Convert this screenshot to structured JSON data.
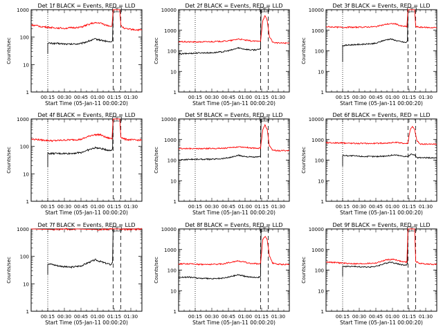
{
  "colors": {
    "events": "#000000",
    "lld": "#ff0000",
    "axis": "#000000",
    "background": "#ffffff"
  },
  "chart_data": [
    {
      "type": "line",
      "title": "Det 1f BLACK = Events, RED = LLD",
      "xlabel": "Start Time (05-Jan-11 00:00:20)",
      "ylabel": "Counts/sec",
      "yscale": "log",
      "ylim": [
        1,
        1000
      ],
      "yticks": [
        "1",
        "10",
        "100",
        "1000"
      ],
      "yticks_values": [
        1,
        10,
        100,
        1000
      ],
      "xlim": [
        0,
        100
      ],
      "xticks": [
        "00:15",
        "00:30",
        "00:45",
        "01:00",
        "01:15",
        "01:30"
      ],
      "xticks_values": [
        15,
        30,
        45,
        60,
        75,
        90
      ],
      "vlines_dotted": [
        15
      ],
      "vlines_dashed": [
        74,
        81
      ],
      "marker_text": "T",
      "grid": false,
      "series": [
        {
          "x": [
            15,
            15,
            25,
            35,
            45,
            52,
            58,
            65,
            72,
            73.5,
            74,
            76,
            80
          ],
          "y": [
            25,
            60,
            58,
            55,
            58,
            72,
            85,
            75,
            65,
            75,
            1000,
            1000,
            1000
          ]
        },
        {
          "x": [
            0,
            10,
            20,
            30,
            45,
            55,
            62,
            68,
            73,
            74,
            76,
            80,
            81,
            85,
            95,
            100
          ],
          "y": [
            280,
            240,
            220,
            210,
            230,
            320,
            330,
            270,
            250,
            1000,
            1000,
            1000,
            260,
            200,
            185,
            180
          ]
        }
      ]
    },
    {
      "type": "line",
      "title": "Det 2f BLACK = Events, RED = LLD",
      "xlabel": "Start Time (05-Jan-11 00:00:20)",
      "ylabel": "Counts/sec",
      "yscale": "log",
      "ylim": [
        1,
        10000
      ],
      "yticks": [
        "1",
        "10",
        "100",
        "1000",
        "10000"
      ],
      "yticks_values": [
        1,
        10,
        100,
        1000,
        10000
      ],
      "xlim": [
        0,
        100
      ],
      "xticks": [
        "00:15",
        "00:30",
        "00:45",
        "01:00",
        "01:15",
        "01:30"
      ],
      "xticks_values": [
        15,
        30,
        45,
        60,
        75,
        90
      ],
      "vlines_dotted": [
        15
      ],
      "vlines_dashed": [
        74,
        81
      ],
      "marker_text": "T",
      "grid": false,
      "series": [
        {
          "x": [
            0,
            0,
            10,
            20,
            30,
            40,
            48,
            54,
            60,
            66,
            72,
            74,
            74.5
          ],
          "y": [
            30,
            70,
            75,
            80,
            80,
            90,
            110,
            140,
            120,
            110,
            115,
            120,
            10000
          ]
        },
        {
          "x": [
            0,
            10,
            20,
            30,
            40,
            48,
            54,
            60,
            66,
            72,
            74,
            76,
            78,
            80,
            82,
            85,
            90,
            100
          ],
          "y": [
            280,
            270,
            270,
            280,
            290,
            320,
            380,
            330,
            300,
            290,
            300,
            3000,
            5000,
            3000,
            500,
            260,
            240,
            240
          ]
        }
      ]
    },
    {
      "type": "line",
      "title": "Det 3f BLACK = Events, RED = LLD",
      "xlabel": "Start Time (05-Jan-11 00:00:20)",
      "ylabel": "Counts/sec",
      "yscale": "log",
      "ylim": [
        1,
        10000
      ],
      "yticks": [
        "1",
        "10",
        "100",
        "1000",
        "10000"
      ],
      "yticks_values": [
        1,
        10,
        100,
        1000,
        10000
      ],
      "xlim": [
        0,
        100
      ],
      "xticks": [
        "00:15",
        "00:30",
        "00:45",
        "01:00",
        "01:15",
        "01:30"
      ],
      "xticks_values": [
        15,
        30,
        45,
        60,
        75,
        90
      ],
      "vlines_dotted": [
        15
      ],
      "vlines_dashed": [
        74,
        81
      ],
      "marker_text": "T",
      "grid": false,
      "series": [
        {
          "x": [
            15,
            15,
            25,
            35,
            45,
            52,
            58,
            65,
            72,
            73.5,
            74,
            76,
            80
          ],
          "y": [
            30,
            180,
            200,
            210,
            230,
            320,
            380,
            300,
            250,
            300,
            10000,
            10000,
            10000
          ]
        },
        {
          "x": [
            0,
            10,
            20,
            30,
            45,
            55,
            62,
            68,
            73,
            74,
            76,
            80,
            81,
            85,
            95,
            100
          ],
          "y": [
            1500,
            1400,
            1400,
            1400,
            1500,
            2000,
            2100,
            1600,
            1500,
            10000,
            10000,
            10000,
            1500,
            1400,
            1350,
            1350
          ]
        }
      ]
    },
    {
      "type": "line",
      "title": "Det 4f BLACK = Events, RED = LLD",
      "xlabel": "Start Time (05-Jan-11 00:00:20)",
      "ylabel": "Counts/sec",
      "yscale": "log",
      "ylim": [
        1,
        1000
      ],
      "yticks": [
        "1",
        "10",
        "100",
        "1000"
      ],
      "yticks_values": [
        1,
        10,
        100,
        1000
      ],
      "xlim": [
        0,
        100
      ],
      "xticks": [
        "00:15",
        "00:30",
        "00:45",
        "01:00",
        "01:15",
        "01:30"
      ],
      "xticks_values": [
        15,
        30,
        45,
        60,
        75,
        90
      ],
      "vlines_dotted": [
        15
      ],
      "vlines_dashed": [
        74,
        81
      ],
      "marker_text": "T",
      "grid": false,
      "series": [
        {
          "x": [
            15,
            15,
            25,
            35,
            45,
            52,
            58,
            65,
            72,
            73.5,
            74,
            76,
            80
          ],
          "y": [
            18,
            55,
            55,
            55,
            60,
            75,
            90,
            80,
            70,
            80,
            1000,
            1000,
            1000
          ]
        },
        {
          "x": [
            0,
            10,
            20,
            30,
            45,
            55,
            62,
            68,
            73,
            74,
            76,
            80,
            81,
            85,
            95,
            100
          ],
          "y": [
            190,
            170,
            160,
            170,
            180,
            260,
            270,
            210,
            190,
            1000,
            1000,
            1000,
            220,
            180,
            170,
            170
          ]
        }
      ]
    },
    {
      "type": "line",
      "title": "Det 5f BLACK = Events, RED = LLD",
      "xlabel": "Start Time (05-Jan-11 00:00:20)",
      "ylabel": "Counts/sec",
      "yscale": "log",
      "ylim": [
        1,
        10000
      ],
      "yticks": [
        "1",
        "10",
        "100",
        "1000",
        "10000"
      ],
      "yticks_values": [
        1,
        10,
        100,
        1000,
        10000
      ],
      "xlim": [
        0,
        100
      ],
      "xticks": [
        "00:15",
        "00:30",
        "00:45",
        "01:00",
        "01:15",
        "01:30"
      ],
      "xticks_values": [
        15,
        30,
        45,
        60,
        75,
        90
      ],
      "vlines_dotted": [
        15
      ],
      "vlines_dashed": [
        74,
        81
      ],
      "marker_text": "T",
      "grid": false,
      "series": [
        {
          "x": [
            0,
            0,
            10,
            20,
            30,
            40,
            48,
            54,
            60,
            66,
            72,
            74,
            74.5
          ],
          "y": [
            40,
            100,
            110,
            110,
            110,
            120,
            140,
            170,
            150,
            140,
            140,
            150,
            10000
          ]
        },
        {
          "x": [
            0,
            10,
            20,
            30,
            40,
            48,
            54,
            60,
            66,
            72,
            74,
            76,
            78,
            80,
            82,
            85,
            90,
            100
          ],
          "y": [
            370,
            360,
            360,
            370,
            380,
            400,
            450,
            420,
            390,
            380,
            390,
            3000,
            5000,
            3000,
            500,
            300,
            290,
            290
          ]
        }
      ]
    },
    {
      "type": "line",
      "title": "Det 6f BLACK = Events, RED = LLD",
      "xlabel": "Start Time (05-Jan-11 00:00:20)",
      "ylabel": "Counts/sec",
      "yscale": "log",
      "ylim": [
        1,
        10000
      ],
      "yticks": [
        "1",
        "10",
        "100",
        "1000",
        "10000"
      ],
      "yticks_values": [
        1,
        10,
        100,
        1000,
        10000
      ],
      "xlim": [
        0,
        100
      ],
      "xticks": [
        "00:15",
        "00:30",
        "00:45",
        "01:00",
        "01:15",
        "01:30"
      ],
      "xticks_values": [
        15,
        30,
        45,
        60,
        75,
        90
      ],
      "vlines_dotted": [
        15
      ],
      "vlines_dashed": [
        74,
        81
      ],
      "marker_text": "",
      "grid": false,
      "series": [
        {
          "x": [
            15,
            15,
            25,
            35,
            45,
            55,
            62,
            68,
            73,
            74,
            76,
            78,
            80,
            82,
            85,
            100
          ],
          "y": [
            50,
            170,
            160,
            150,
            150,
            160,
            180,
            160,
            150,
            150,
            180,
            200,
            170,
            130,
            130,
            130
          ]
        },
        {
          "x": [
            0,
            15,
            30,
            45,
            55,
            62,
            68,
            73,
            74,
            76,
            78,
            80,
            82,
            85,
            100
          ],
          "y": [
            700,
            680,
            650,
            650,
            680,
            720,
            680,
            650,
            700,
            3000,
            4500,
            3000,
            900,
            600,
            600
          ]
        }
      ]
    },
    {
      "type": "line",
      "title": "Det 7f BLACK = Events, RED = LLD",
      "xlabel": "Start Time (05-Jan-11 00:00:20)",
      "ylabel": "Counts/sec",
      "yscale": "log",
      "ylim": [
        1,
        1000
      ],
      "yticks": [
        "1",
        "10",
        "100",
        "1000"
      ],
      "yticks_values": [
        1,
        10,
        100,
        1000
      ],
      "xlim": [
        0,
        100
      ],
      "xticks": [
        "00:15",
        "00:30",
        "00:45",
        "01:00",
        "01:15",
        "01:30"
      ],
      "xticks_values": [
        15,
        30,
        45,
        60,
        75,
        90
      ],
      "vlines_dotted": [
        15
      ],
      "vlines_dashed": [
        74,
        81
      ],
      "marker_text": "T",
      "grid": false,
      "series": [
        {
          "x": [
            15,
            15,
            25,
            35,
            45,
            52,
            58,
            65,
            72,
            73.5,
            74,
            76,
            80
          ],
          "y": [
            22,
            55,
            45,
            40,
            45,
            60,
            75,
            60,
            50,
            60,
            1000,
            1000,
            1000
          ]
        },
        {
          "x": [
            0,
            20,
            40,
            60,
            74,
            80,
            81,
            100
          ],
          "y": [
            1000,
            950,
            1000,
            950,
            1000,
            1000,
            950,
            1000
          ]
        }
      ]
    },
    {
      "type": "line",
      "title": "Det 8f BLACK = Events, RED = LLD",
      "xlabel": "Start Time (05-Jan-11 00:00:20)",
      "ylabel": "Counts/sec",
      "yscale": "log",
      "ylim": [
        1,
        10000
      ],
      "yticks": [
        "1",
        "10",
        "100",
        "1000",
        "10000"
      ],
      "yticks_values": [
        1,
        10,
        100,
        1000,
        10000
      ],
      "xlim": [
        0,
        100
      ],
      "xticks": [
        "00:15",
        "00:30",
        "00:45",
        "01:00",
        "01:15",
        "01:30"
      ],
      "xticks_values": [
        15,
        30,
        45,
        60,
        75,
        90
      ],
      "vlines_dotted": [
        15
      ],
      "vlines_dashed": [
        74,
        81
      ],
      "marker_text": "T",
      "grid": false,
      "series": [
        {
          "x": [
            0,
            0,
            10,
            20,
            30,
            40,
            48,
            54,
            60,
            66,
            72,
            74,
            74.5
          ],
          "y": [
            20,
            45,
            45,
            40,
            38,
            40,
            50,
            60,
            50,
            45,
            45,
            50,
            10000
          ]
        },
        {
          "x": [
            0,
            10,
            20,
            30,
            40,
            48,
            54,
            60,
            66,
            72,
            74,
            76,
            78,
            80,
            82,
            85,
            90,
            100
          ],
          "y": [
            200,
            200,
            190,
            190,
            200,
            250,
            280,
            240,
            210,
            200,
            210,
            3000,
            4500,
            3000,
            500,
            220,
            190,
            190
          ]
        }
      ]
    },
    {
      "type": "line",
      "title": "Det 9f BLACK = Events, RED = LLD",
      "xlabel": "Start Time (05-Jan-11 00:00:20)",
      "ylabel": "Counts/sec",
      "yscale": "log",
      "ylim": [
        1,
        10000
      ],
      "yticks": [
        "1",
        "10",
        "100",
        "1000",
        "10000"
      ],
      "yticks_values": [
        1,
        10,
        100,
        1000,
        10000
      ],
      "xlim": [
        0,
        100
      ],
      "xticks": [
        "00:15",
        "00:30",
        "00:45",
        "01:00",
        "01:15",
        "01:30"
      ],
      "xticks_values": [
        15,
        30,
        45,
        60,
        75,
        90
      ],
      "vlines_dotted": [
        15
      ],
      "vlines_dashed": [
        74,
        81
      ],
      "marker_text": "T",
      "grid": false,
      "series": [
        {
          "x": [
            15,
            15,
            25,
            35,
            45,
            52,
            58,
            65,
            72,
            73.5,
            74,
            76,
            80
          ],
          "y": [
            50,
            150,
            150,
            140,
            150,
            200,
            250,
            200,
            170,
            200,
            10000,
            10000,
            10000
          ]
        },
        {
          "x": [
            0,
            10,
            20,
            30,
            45,
            55,
            62,
            68,
            73,
            74,
            76,
            80,
            81,
            85,
            95,
            100
          ],
          "y": [
            250,
            230,
            210,
            200,
            220,
            320,
            330,
            260,
            240,
            10000,
            10000,
            10000,
            260,
            210,
            190,
            190
          ]
        }
      ]
    }
  ]
}
